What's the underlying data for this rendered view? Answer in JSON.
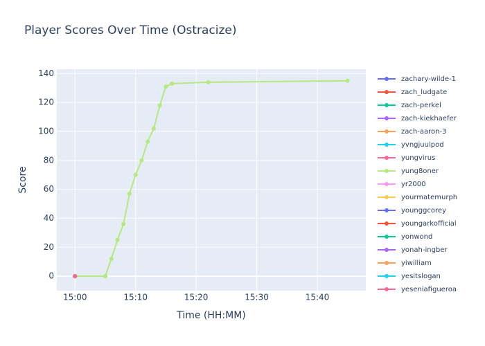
{
  "chart_data": {
    "type": "line",
    "title": "Player Scores Over Time (Ostracize)",
    "x_label": "Time (HH:MM)",
    "y_label": "Score",
    "xlim": [
      "14:57",
      "15:48"
    ],
    "xticks": [
      "15:00",
      "15:10",
      "15:20",
      "15:30",
      "15:40"
    ],
    "ylim": [
      -10,
      143
    ],
    "yticks": [
      0,
      20,
      40,
      60,
      80,
      100,
      120,
      140
    ],
    "grid": true,
    "series": [
      {
        "name": "zachary-wilde-1",
        "color": "#636efa",
        "x": [
          "15:00"
        ],
        "values": [
          0
        ]
      },
      {
        "name": "zach_ludgate",
        "color": "#EF553B",
        "x": [
          "15:00"
        ],
        "values": [
          0
        ]
      },
      {
        "name": "zach-perkel",
        "color": "#00cc96",
        "x": [
          "15:00"
        ],
        "values": [
          0
        ]
      },
      {
        "name": "zach-kiekhaefer",
        "color": "#ab63fa",
        "x": [
          "15:00"
        ],
        "values": [
          0
        ]
      },
      {
        "name": "zach-aaron-3",
        "color": "#FFA15A",
        "x": [
          "15:00"
        ],
        "values": [
          0
        ]
      },
      {
        "name": "yvngjuulpod",
        "color": "#19d3f3",
        "x": [
          "15:00"
        ],
        "values": [
          0
        ]
      },
      {
        "name": "yungvirus",
        "color": "#FF6692",
        "x": [
          "15:00"
        ],
        "values": [
          0
        ]
      },
      {
        "name": "yung8oner",
        "color": "#B6E880",
        "x": [
          "15:00",
          "15:05",
          "15:06",
          "15:07",
          "15:08",
          "15:09",
          "15:10",
          "15:11",
          "15:12",
          "15:13",
          "15:14",
          "15:15",
          "15:16",
          "15:22",
          "15:45"
        ],
        "values": [
          0,
          0,
          12,
          25,
          36,
          57,
          70,
          80,
          93,
          102,
          118,
          131,
          133,
          134,
          135
        ]
      },
      {
        "name": "yr2000",
        "color": "#FF97FF",
        "x": [
          "15:00"
        ],
        "values": [
          0
        ]
      },
      {
        "name": "yourmatemurph",
        "color": "#FECB52",
        "x": [
          "15:00"
        ],
        "values": [
          0
        ]
      },
      {
        "name": "younggcorey",
        "color": "#636efa",
        "x": [
          "15:00"
        ],
        "values": [
          0
        ]
      },
      {
        "name": "youngarkofficial",
        "color": "#EF553B",
        "x": [
          "15:00"
        ],
        "values": [
          0
        ]
      },
      {
        "name": "yonwond",
        "color": "#00cc96",
        "x": [
          "15:00"
        ],
        "values": [
          0
        ]
      },
      {
        "name": "yonah-ingber",
        "color": "#ab63fa",
        "x": [
          "15:00"
        ],
        "values": [
          0
        ]
      },
      {
        "name": "yiwilliam",
        "color": "#FFA15A",
        "x": [
          "15:00"
        ],
        "values": [
          0
        ]
      },
      {
        "name": "yesitslogan",
        "color": "#19d3f3",
        "x": [
          "15:00"
        ],
        "values": [
          0
        ]
      },
      {
        "name": "yeseniafigueroa",
        "color": "#FF6692",
        "x": [
          "15:00"
        ],
        "values": [
          0
        ]
      }
    ]
  }
}
